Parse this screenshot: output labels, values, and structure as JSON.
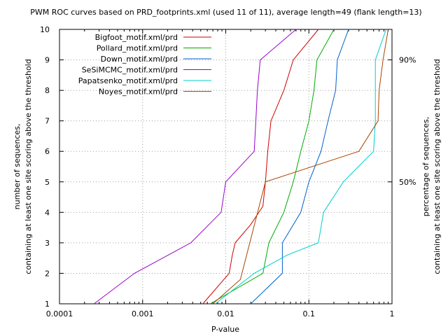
{
  "chart_data": {
    "type": "line",
    "title": "PWM ROC curves based on PRD_footprints.xml (used 11 of 11), average length=49 (flank length=13)",
    "xlabel": "P-value",
    "ylabel": [
      "number of sequences,",
      "containing at least one site scoring above the threshold"
    ],
    "y2label": [
      "percentage of sequences,",
      "containing at least one site scoring above the threshold"
    ],
    "x_scale": "log",
    "xlim": [
      0.0001,
      1
    ],
    "ylim": [
      1,
      10
    ],
    "x_ticks": [
      {
        "value": 0.0001,
        "label": "0.0001"
      },
      {
        "value": 0.001,
        "label": "0.001"
      },
      {
        "value": 0.01,
        "label": "0.01"
      },
      {
        "value": 0.1,
        "label": "0.1"
      },
      {
        "value": 1,
        "label": "1"
      }
    ],
    "y_ticks": [
      {
        "value": 1,
        "label": "1"
      },
      {
        "value": 2,
        "label": "2"
      },
      {
        "value": 3,
        "label": "3"
      },
      {
        "value": 4,
        "label": "4"
      },
      {
        "value": 5,
        "label": "5"
      },
      {
        "value": 6,
        "label": "6"
      },
      {
        "value": 7,
        "label": "7"
      },
      {
        "value": 8,
        "label": "8"
      },
      {
        "value": 9,
        "label": "9"
      },
      {
        "value": 10,
        "label": "10"
      }
    ],
    "y2_ticks": [
      {
        "value": 5,
        "label": "50%"
      },
      {
        "value": 9,
        "label": "90%"
      }
    ],
    "grid": true,
    "legend_position": "top-left",
    "series": [
      {
        "name": "Bigfoot_motif.xml/prd",
        "color": "#cc0000",
        "points": [
          [
            0.0053,
            1
          ],
          [
            0.011,
            2
          ],
          [
            0.012,
            2.6
          ],
          [
            0.013,
            3
          ],
          [
            0.02,
            3.6
          ],
          [
            0.028,
            4.2
          ],
          [
            0.03,
            5
          ],
          [
            0.032,
            6
          ],
          [
            0.035,
            7
          ],
          [
            0.05,
            8
          ],
          [
            0.065,
            9
          ],
          [
            0.13,
            10
          ]
        ]
      },
      {
        "name": "Pollard_motif.xml/prd",
        "color": "#00aa00",
        "points": [
          [
            0.0065,
            1
          ],
          [
            0.028,
            2
          ],
          [
            0.033,
            3
          ],
          [
            0.05,
            4
          ],
          [
            0.065,
            5
          ],
          [
            0.08,
            6
          ],
          [
            0.1,
            7
          ],
          [
            0.115,
            8
          ],
          [
            0.125,
            9
          ],
          [
            0.2,
            10
          ]
        ]
      },
      {
        "name": "Down_motif.xml/prd",
        "color": "#0060cc",
        "points": [
          [
            0.02,
            1
          ],
          [
            0.048,
            2
          ],
          [
            0.048,
            3
          ],
          [
            0.08,
            4
          ],
          [
            0.1,
            5
          ],
          [
            0.14,
            6
          ],
          [
            0.17,
            7
          ],
          [
            0.21,
            8
          ],
          [
            0.22,
            9
          ],
          [
            0.3,
            10
          ]
        ]
      },
      {
        "name": "SeSiMCMC_motif.xml/prd",
        "color": "#9900cc",
        "points": [
          [
            0.00026,
            1
          ],
          [
            0.0008,
            2
          ],
          [
            0.0038,
            3
          ],
          [
            0.0088,
            4
          ],
          [
            0.01,
            5
          ],
          [
            0.022,
            6
          ],
          [
            0.023,
            7
          ],
          [
            0.024,
            8
          ],
          [
            0.026,
            9
          ],
          [
            0.07,
            10
          ]
        ]
      },
      {
        "name": "Papatsenko_motif.xml/prd",
        "color": "#00cccc",
        "points": [
          [
            0.0075,
            1
          ],
          [
            0.022,
            2
          ],
          [
            0.055,
            2.6
          ],
          [
            0.13,
            3
          ],
          [
            0.15,
            4
          ],
          [
            0.26,
            5
          ],
          [
            0.6,
            6
          ],
          [
            0.63,
            7
          ],
          [
            0.63,
            8
          ],
          [
            0.63,
            9
          ],
          [
            0.85,
            10
          ]
        ]
      },
      {
        "name": "Noyes_motif.xml/prd",
        "color": "#aa4400",
        "points": [
          [
            0.007,
            1
          ],
          [
            0.015,
            1.8
          ],
          [
            0.03,
            5
          ],
          [
            0.4,
            6
          ],
          [
            0.68,
            7
          ],
          [
            0.7,
            8
          ],
          [
            0.78,
            9
          ],
          [
            0.9,
            10
          ]
        ]
      }
    ]
  }
}
